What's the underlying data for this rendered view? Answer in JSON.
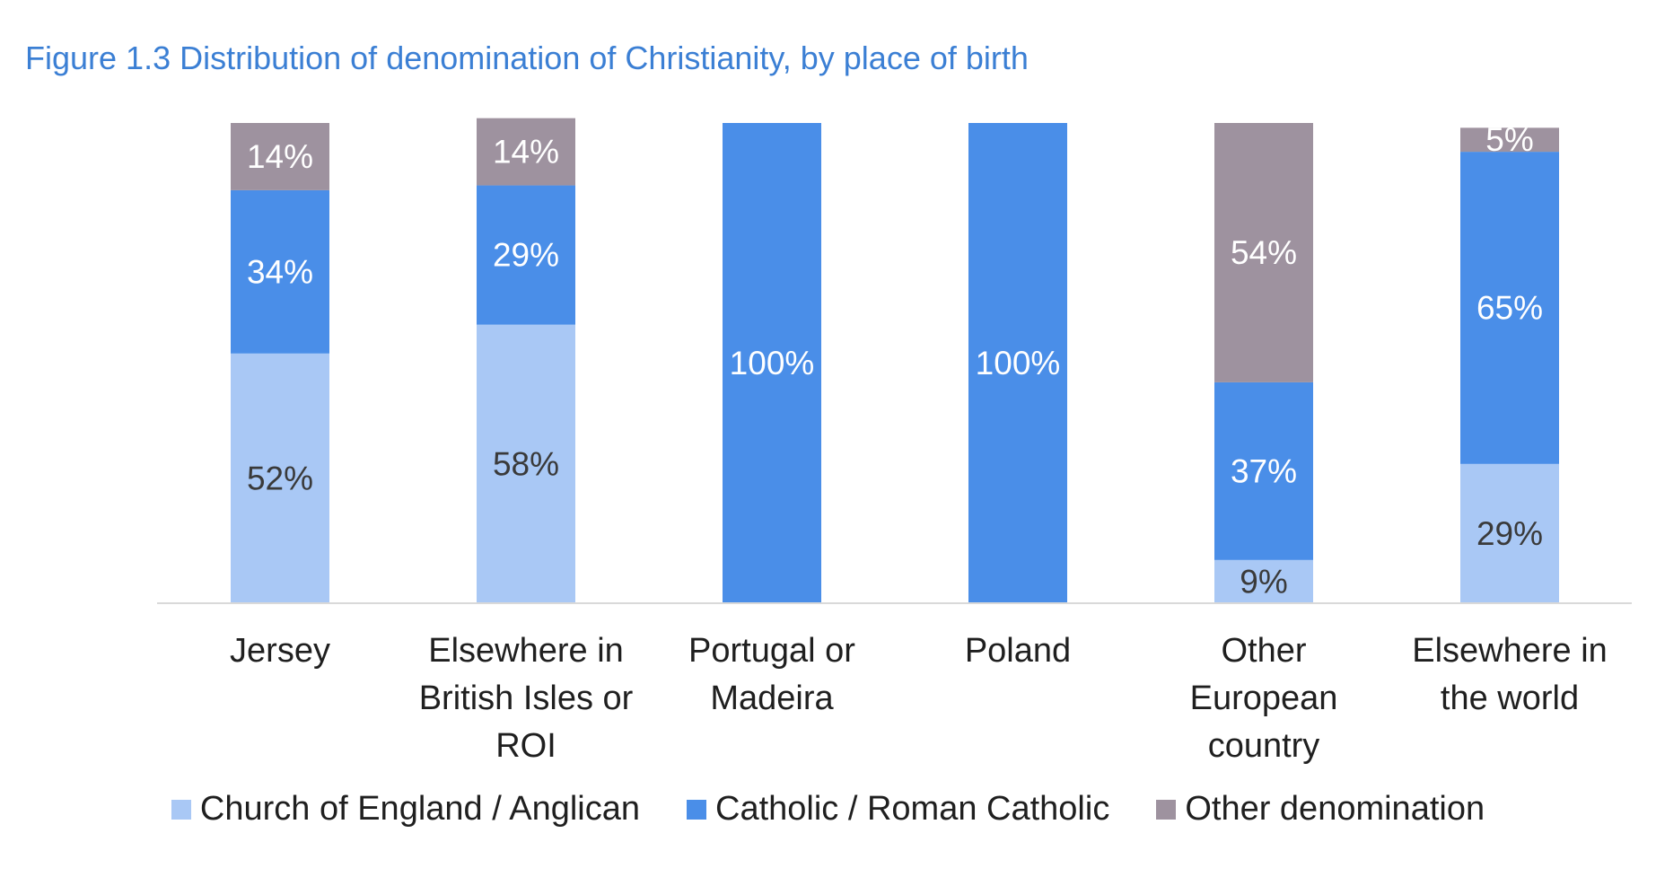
{
  "chart_data": {
    "type": "bar",
    "stacked": true,
    "title": "Figure 1.3 Distribution of denomination of Christianity, by place of birth",
    "categories": [
      [
        "Jersey"
      ],
      [
        "Elsewhere in",
        "British Isles or",
        "ROI"
      ],
      [
        "Portugal or",
        "Madeira"
      ],
      [
        "Poland"
      ],
      [
        "Other",
        "European",
        "country"
      ],
      [
        "Elsewhere in",
        "the world"
      ]
    ],
    "series": [
      {
        "name": "Church of England / Anglican",
        "values": [
          52,
          58,
          0,
          0,
          9,
          29
        ],
        "color": "#a9c8f5",
        "label_color": "#3a3a3a"
      },
      {
        "name": "Catholic / Roman Catholic",
        "values": [
          34,
          29,
          100,
          100,
          37,
          65
        ],
        "color": "#4a8ee8",
        "label_color": "#ffffff"
      },
      {
        "name": "Other denomination",
        "values": [
          14,
          14,
          0,
          0,
          54,
          5
        ],
        "color": "#9e929f",
        "label_color": "#ffffff"
      }
    ],
    "value_suffix": "%",
    "ylim": [
      0,
      100
    ],
    "grid": false,
    "legend_position": "bottom"
  }
}
